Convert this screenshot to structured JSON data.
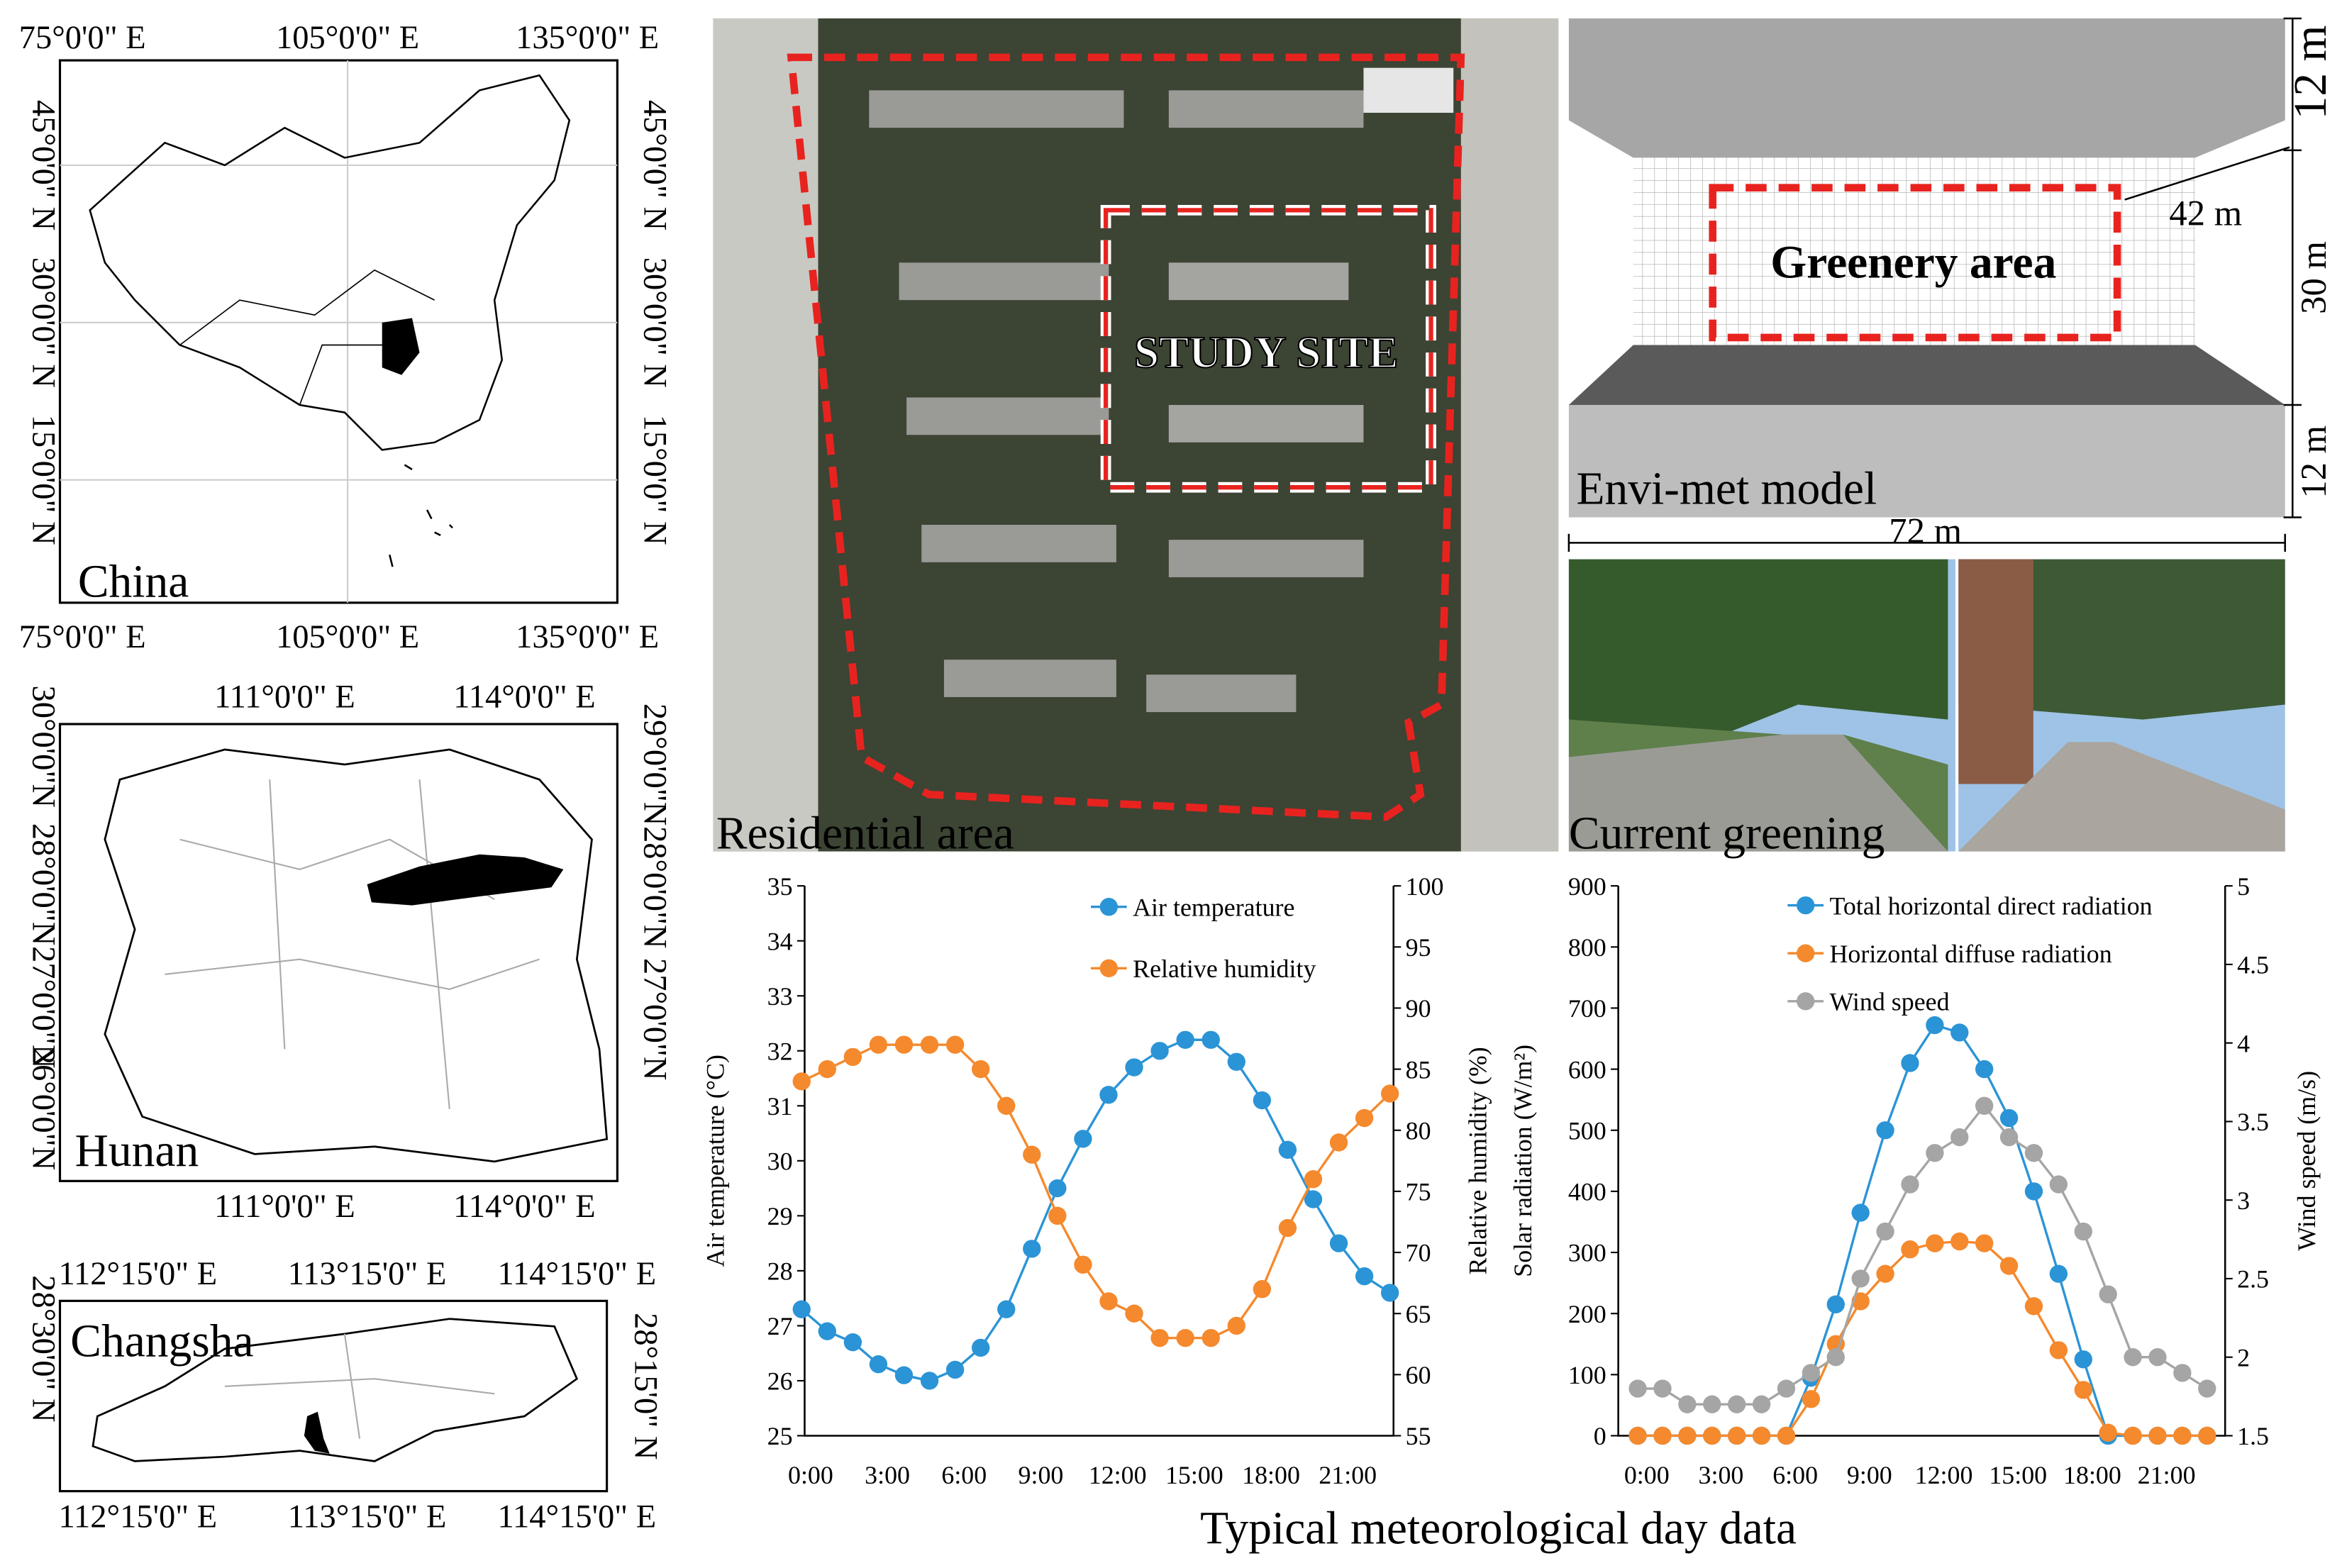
{
  "maps": [
    {
      "label": "China",
      "top": [
        "75°0'0\" E",
        "105°0'0\" E",
        "135°0'0\" E"
      ],
      "bottom": [
        "75°0'0\" E",
        "105°0'0\" E",
        "135°0'0\" E"
      ],
      "left": [
        "45°0'0\" N",
        "30°0'0\" N",
        "15°0'0\" N"
      ],
      "right": [
        "45°0'0\" N",
        "30°0'0\" N",
        "15°0'0\" N"
      ]
    },
    {
      "label": "Hunan",
      "top": [
        "111°0'0\" E",
        "114°0'0\" E"
      ],
      "bottom": [
        "111°0'0\" E",
        "114°0'0\" E"
      ],
      "left": [
        "30°0'0\"N",
        "28°0'0\"N",
        "27°0'0\"N",
        "26°0'0\"N"
      ],
      "right": [
        "29°0'0\"N",
        "28°0'0\"N",
        "27°0'0\"N"
      ]
    },
    {
      "label": "Changsha",
      "top": [
        "112°15'0\" E",
        "113°15'0\" E",
        "114°15'0\" E"
      ],
      "bottom": [
        "112°15'0\" E",
        "113°15'0\" E",
        "114°15'0\" E"
      ],
      "left": [
        "28°30'0\" N"
      ],
      "right": [
        "28°15'0\" N"
      ]
    }
  ],
  "aerial": {
    "label": "Residential area",
    "site": "STUDY SITE"
  },
  "model": {
    "label": "Envi-met model",
    "area": "Greenery area",
    "height_top": "12 m",
    "depth": "42 m",
    "width": "30 m",
    "height_bottom": "12 m",
    "length": "72 m"
  },
  "photo": {
    "label": "Current greening"
  },
  "chart_data": [
    {
      "type": "line",
      "ylabel": "Air temperature (°C)",
      "y2label": "Relative humidity (%)",
      "legend": "top",
      "categories": [
        "0:00",
        null,
        null,
        "3:00",
        null,
        null,
        "6:00",
        null,
        null,
        "9:00",
        null,
        null,
        "12:00",
        null,
        null,
        "15:00",
        null,
        null,
        "18:00",
        null,
        null,
        "21:00",
        null,
        null
      ],
      "ylim": [
        25,
        35
      ],
      "yticks": [
        25,
        26,
        27,
        28,
        29,
        30,
        31,
        32,
        33,
        34,
        35
      ],
      "y2lim": [
        55,
        100
      ],
      "y2ticks": [
        55,
        60,
        65,
        70,
        75,
        80,
        85,
        90,
        95,
        100
      ],
      "series": [
        {
          "name": "Air temperature",
          "color": "#2b94d6",
          "values": [
            27.3,
            26.9,
            26.7,
            26.3,
            26.1,
            26.0,
            26.2,
            26.6,
            27.3,
            28.4,
            29.5,
            30.4,
            31.2,
            31.7,
            32.0,
            32.2,
            32.2,
            31.8,
            31.1,
            30.2,
            29.3,
            28.5,
            27.9,
            27.6
          ]
        },
        {
          "name": "Relative humidity",
          "color": "#f5892d",
          "axis": "y2",
          "values": [
            84,
            85,
            86,
            87,
            87,
            87,
            87,
            85,
            82,
            78,
            73,
            69,
            66,
            65,
            63,
            63,
            63,
            64,
            67,
            72,
            76,
            79,
            81,
            83
          ]
        }
      ]
    },
    {
      "type": "line",
      "ylabel": "Solar radiation (W/m²)",
      "y2label": "Wind speed (m/s)",
      "legend": "top",
      "categories": [
        "0:00",
        null,
        null,
        "3:00",
        null,
        null,
        "6:00",
        null,
        null,
        "9:00",
        null,
        null,
        "12:00",
        null,
        null,
        "15:00",
        null,
        null,
        "18:00",
        null,
        null,
        "21:00",
        null,
        null
      ],
      "ylim": [
        0,
        900
      ],
      "yticks": [
        0,
        100,
        200,
        300,
        400,
        500,
        600,
        700,
        800,
        900
      ],
      "y2lim": [
        1.5,
        5
      ],
      "y2ticks": [
        1.5,
        2,
        2.5,
        3,
        3.5,
        4,
        4.5,
        5
      ],
      "series": [
        {
          "name": "Total horizontal direct radiation",
          "color": "#2b94d6",
          "values": [
            0,
            0,
            0,
            0,
            0,
            0,
            0,
            95,
            215,
            365,
            500,
            610,
            672,
            660,
            600,
            520,
            400,
            265,
            125,
            0,
            0,
            0,
            0,
            0
          ]
        },
        {
          "name": "Horizontal diffuse radiation",
          "color": "#f5892d",
          "values": [
            0,
            0,
            0,
            0,
            0,
            0,
            0,
            60,
            150,
            220,
            265,
            305,
            315,
            318,
            315,
            278,
            212,
            140,
            75,
            5,
            0,
            0,
            0,
            0
          ]
        },
        {
          "name": "Wind speed",
          "color": "#a5a5a5",
          "axis": "y2",
          "values": [
            1.8,
            1.8,
            1.7,
            1.7,
            1.7,
            1.7,
            1.8,
            1.9,
            2.0,
            2.5,
            2.8,
            3.1,
            3.3,
            3.4,
            3.6,
            3.4,
            3.3,
            3.1,
            2.8,
            2.4,
            2.0,
            2.0,
            1.9,
            1.8
          ]
        }
      ]
    }
  ],
  "footer": "Typical meteorological day data"
}
